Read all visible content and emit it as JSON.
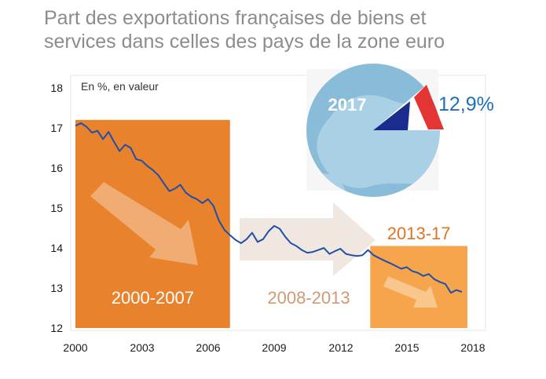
{
  "title_lines": [
    "Part des exportations françaises de biens et",
    "services dans celles des pays de la zone euro"
  ],
  "colors": {
    "line": "#1f4fa8",
    "period1": "#e8822c",
    "period2": "#f0e8e0",
    "period3": "#f6a54c",
    "period1_text": "#ffffff",
    "period2_text": "#d09a74",
    "period3_text": "#e07420",
    "pct_text": "#1f6fbf",
    "globe": "#88bcd8",
    "flag_blue": "#1a2d8f",
    "flag_red": "#e43534"
  },
  "inset": {
    "year": "2017",
    "share": "12,9%",
    "icon": "globe-flag-icon"
  },
  "chart_data": {
    "type": "line",
    "unit_label": "En %, en valeur",
    "xlim": [
      2000,
      2018
    ],
    "ylim": [
      12,
      18
    ],
    "x_ticks": [
      "2000",
      "2003",
      "2006",
      "2009",
      "2012",
      "2015",
      "2018"
    ],
    "y_ticks": [
      "12",
      "13",
      "14",
      "15",
      "16",
      "17",
      "18"
    ],
    "series": [
      {
        "x": [
          2000.0,
          2000.25,
          2000.5,
          2000.75,
          2001.0,
          2001.25,
          2001.5,
          2001.75,
          2002.0,
          2002.25,
          2002.5,
          2002.75,
          2003.0,
          2003.25,
          2003.5,
          2003.75,
          2004.0,
          2004.25,
          2004.5,
          2004.75,
          2005.0,
          2005.25,
          2005.5,
          2005.75,
          2006.0,
          2006.25,
          2006.5,
          2006.75,
          2007.0,
          2007.25,
          2007.5,
          2007.75,
          2008.0,
          2008.25,
          2008.5,
          2008.75,
          2009.0,
          2009.25,
          2009.5,
          2009.75,
          2010.0,
          2010.25,
          2010.5,
          2010.75,
          2011.0,
          2011.25,
          2011.5,
          2011.75,
          2012.0,
          2012.25,
          2012.5,
          2012.75,
          2013.0,
          2013.25,
          2013.5,
          2013.75,
          2014.0,
          2014.25,
          2014.5,
          2014.75,
          2015.0,
          2015.25,
          2015.5,
          2015.75,
          2016.0,
          2016.25,
          2016.5,
          2016.75,
          2017.0,
          2017.25,
          2017.5
        ],
        "y": [
          17.05,
          17.12,
          17.03,
          16.88,
          16.93,
          16.72,
          16.9,
          16.65,
          16.42,
          16.58,
          16.5,
          16.22,
          16.18,
          16.05,
          15.95,
          15.82,
          15.62,
          15.42,
          15.48,
          15.58,
          15.38,
          15.28,
          15.22,
          15.12,
          15.22,
          15.05,
          14.68,
          14.45,
          14.32,
          14.2,
          14.12,
          14.22,
          14.38,
          14.15,
          14.22,
          14.42,
          14.55,
          14.48,
          14.28,
          14.12,
          14.05,
          13.95,
          13.88,
          13.9,
          13.95,
          14.0,
          13.85,
          13.92,
          13.98,
          13.85,
          13.82,
          13.8,
          13.82,
          13.95,
          13.82,
          13.75,
          13.68,
          13.62,
          13.55,
          13.48,
          13.52,
          13.42,
          13.38,
          13.3,
          13.35,
          13.22,
          13.15,
          13.1,
          12.88,
          12.95,
          12.9
        ]
      }
    ],
    "periods": [
      {
        "label": "2000-2007",
        "start": 2000,
        "end": 2007,
        "arrow": "down"
      },
      {
        "label": "2008-2013",
        "start": 2007,
        "end": 2013.35,
        "arrow": "right"
      },
      {
        "label": "2013-17",
        "start": 2013.35,
        "end": 2017.75,
        "arrow": "down"
      }
    ]
  }
}
